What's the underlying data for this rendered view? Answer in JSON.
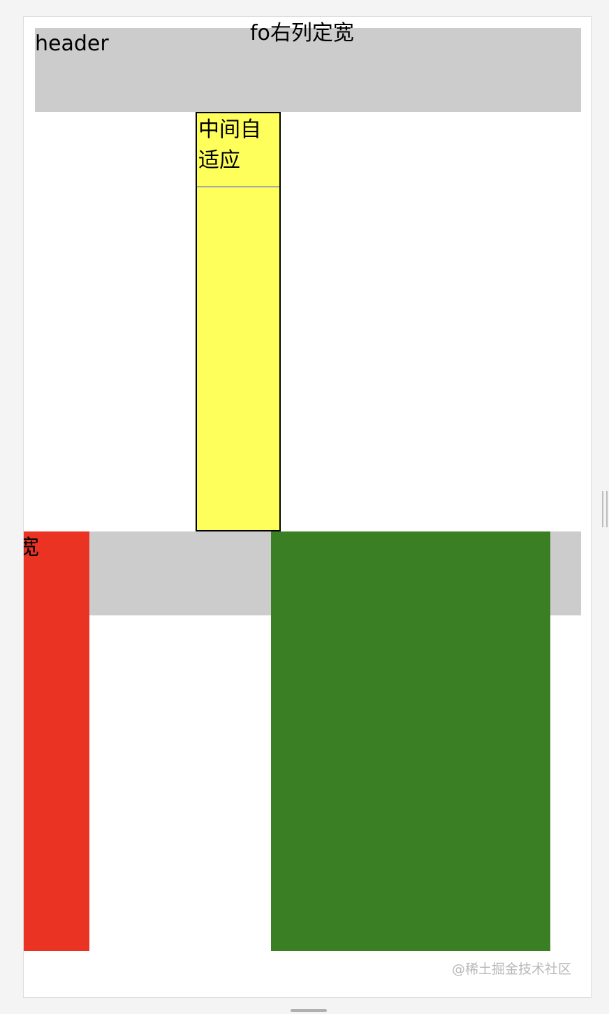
{
  "header": {
    "label": "header"
  },
  "middle": {
    "label": "中间自适应"
  },
  "footer": {
    "label": "fo右列定宽"
  },
  "left_column": {
    "label": "左列定宽"
  },
  "watermark": "@稀土掘金技术社区",
  "colors": {
    "gray": "#cccccc",
    "yellow": "#ffff5c",
    "red": "#ea3323",
    "green": "#3a7f24"
  }
}
